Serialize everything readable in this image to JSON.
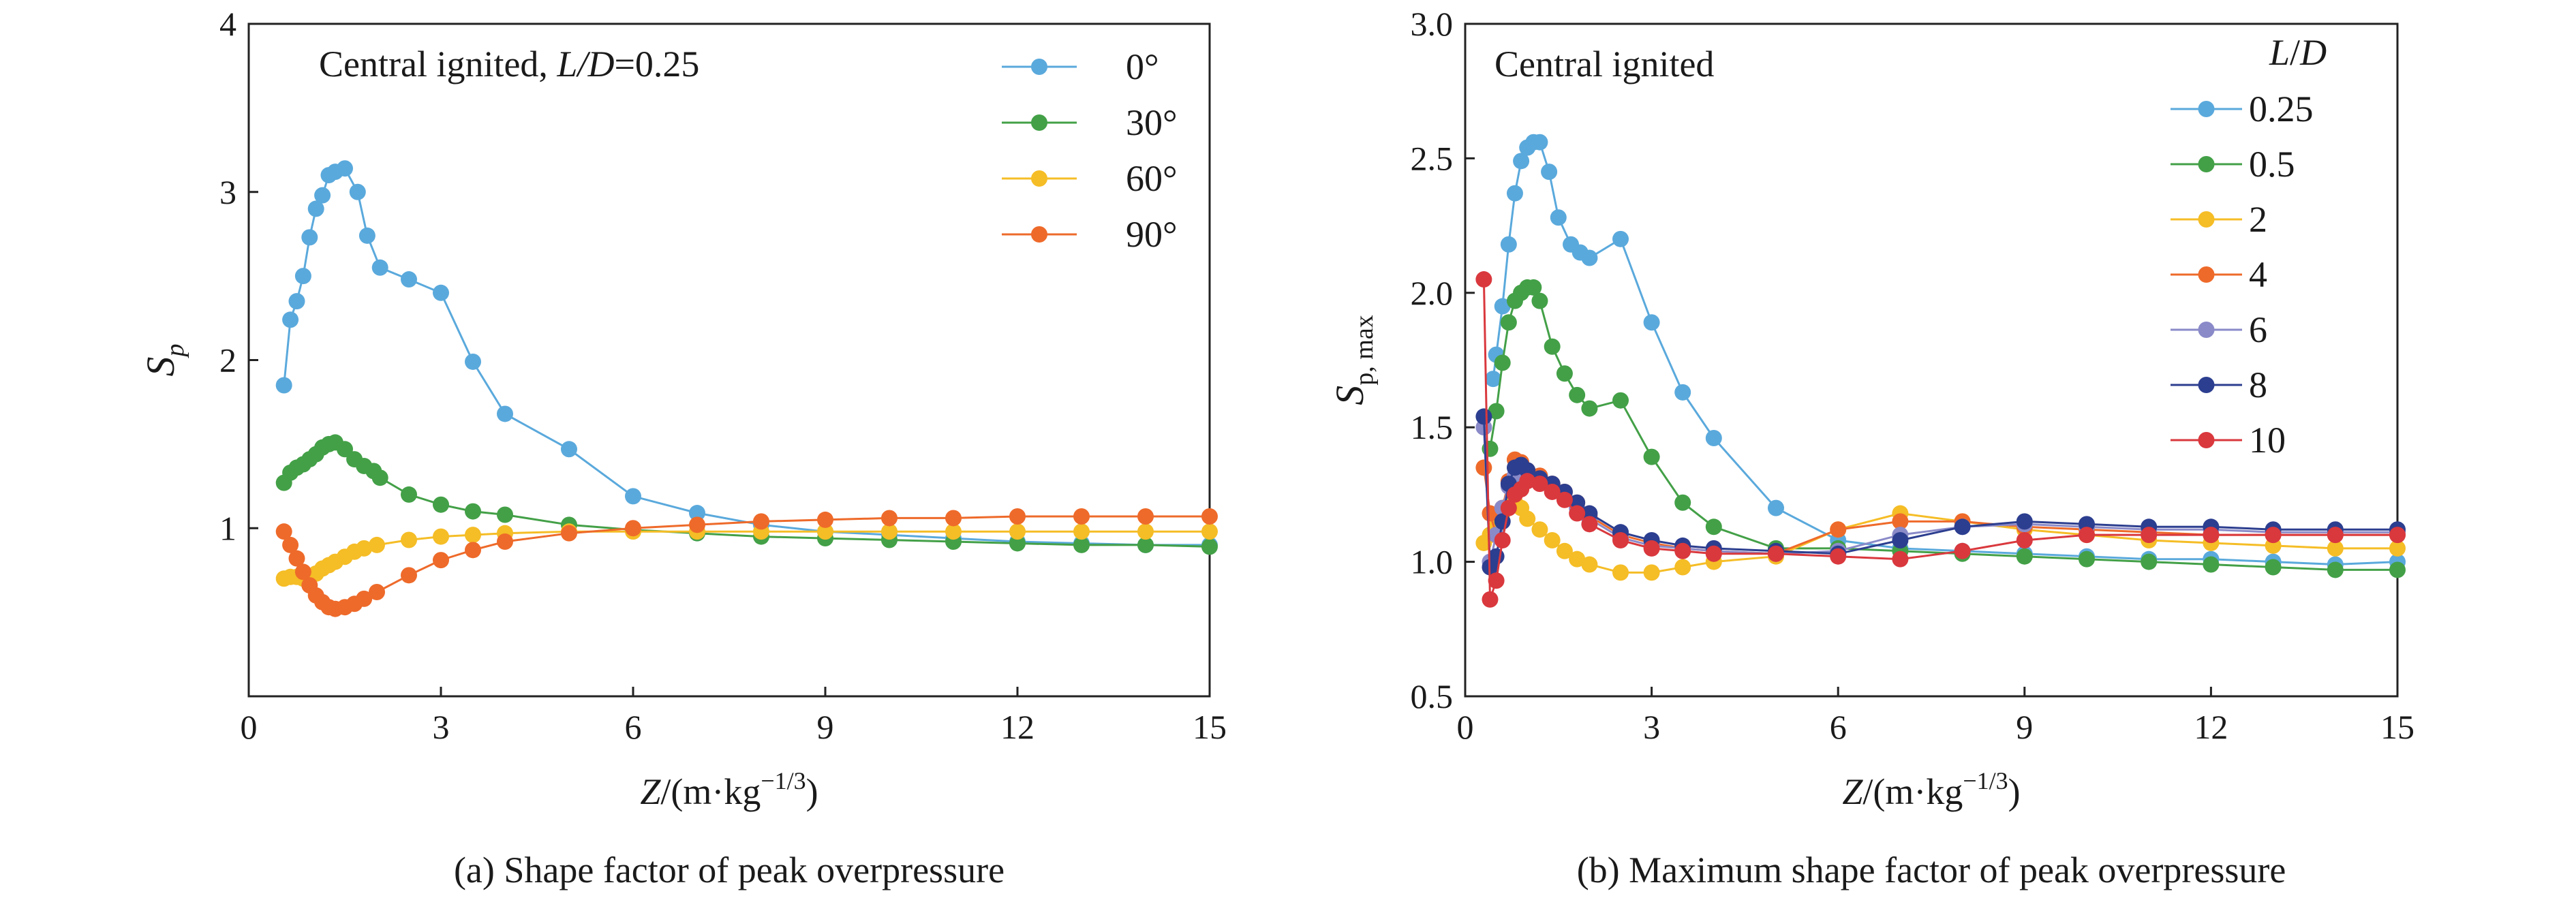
{
  "chart_data": [
    {
      "type": "line",
      "annotation": {
        "prefix": "Central ignited, ",
        "italic": "L/D",
        "suffix": "=0.25"
      },
      "ylabel": {
        "main": "S",
        "sub": "p"
      },
      "xlabel": {
        "italic": "Z",
        "pre": "/(m·kg",
        "sup": "−1/3",
        "post": ")"
      },
      "caption": "(a) Shape factor of peak overpressure",
      "xlim": [
        0,
        15
      ],
      "ylim": [
        0,
        4
      ],
      "xticks": [
        0,
        3,
        6,
        9,
        12,
        15
      ],
      "xtick_labels": [
        "0",
        "3",
        "6",
        "9",
        "12",
        "15"
      ],
      "yticks": [
        1,
        2,
        3,
        4
      ],
      "ytick_labels": [
        "1",
        "2",
        "3",
        "4"
      ],
      "legend_title": "",
      "legend_position": "top-right",
      "series": [
        {
          "name": "0°",
          "color": "#5aa9dc",
          "x": [
            0.55,
            0.65,
            0.75,
            0.85,
            0.95,
            1.05,
            1.15,
            1.25,
            1.35,
            1.5,
            1.7,
            1.85,
            2.05,
            2.5,
            3.0,
            3.5,
            4.0,
            5.0,
            6.0,
            7.0,
            8.0,
            9.0,
            10.0,
            11.0,
            12.0,
            13.0,
            14.0,
            15.0
          ],
          "y": [
            1.85,
            2.24,
            2.35,
            2.5,
            2.73,
            2.9,
            2.98,
            3.1,
            3.12,
            3.14,
            3.0,
            2.74,
            2.55,
            2.48,
            2.4,
            1.99,
            1.68,
            1.47,
            1.19,
            1.09,
            1.02,
            0.98,
            0.96,
            0.94,
            0.92,
            0.91,
            0.9,
            0.9
          ],
          "x_fix": [
            0.55,
            0.65,
            0.75,
            0.85,
            0.95,
            1.05,
            1.15,
            1.25,
            1.35,
            1.5,
            1.7,
            1.85,
            2.05,
            2.5,
            3.0,
            3.5,
            4.0,
            5.0,
            6.0,
            7.0,
            8.0,
            9.0,
            10.0,
            11.0,
            12.0,
            13.0,
            14.0,
            15.0
          ]
        },
        {
          "name": "30°",
          "color": "#43a047",
          "x": [
            0.55,
            0.65,
            0.75,
            0.85,
            0.95,
            1.05,
            1.15,
            1.25,
            1.35,
            1.5,
            1.65,
            1.8,
            1.95,
            2.05,
            2.5,
            3.0,
            3.5,
            4.0,
            5.0,
            6.0,
            7.0,
            8.0,
            9.0,
            10.0,
            11.0,
            12.0,
            13.0,
            14.0,
            15.0
          ],
          "y": [
            1.27,
            1.33,
            1.36,
            1.38,
            1.41,
            1.44,
            1.48,
            1.5,
            1.51,
            1.47,
            1.41,
            1.37,
            1.34,
            1.3,
            1.2,
            1.14,
            1.1,
            1.08,
            1.02,
            0.99,
            0.97,
            0.95,
            0.94,
            0.93,
            0.92,
            0.91,
            0.9,
            0.9,
            0.89
          ]
        },
        {
          "name": "60°",
          "color": "#f5bd26",
          "x": [
            0.55,
            0.65,
            0.75,
            0.85,
            0.95,
            1.05,
            1.15,
            1.25,
            1.35,
            1.5,
            1.65,
            1.8,
            2.0,
            2.5,
            3.0,
            3.5,
            4.0,
            5.0,
            6.0,
            7.0,
            8.0,
            9.0,
            10.0,
            11.0,
            12.0,
            13.0,
            14.0,
            15.0
          ],
          "y": [
            0.7,
            0.71,
            0.71,
            0.7,
            0.71,
            0.73,
            0.76,
            0.78,
            0.8,
            0.83,
            0.86,
            0.88,
            0.9,
            0.93,
            0.95,
            0.96,
            0.97,
            0.98,
            0.98,
            0.98,
            0.98,
            0.98,
            0.98,
            0.98,
            0.98,
            0.98,
            0.98,
            0.98
          ]
        },
        {
          "name": "90°",
          "color": "#ee6a2a",
          "x": [
            0.55,
            0.65,
            0.75,
            0.85,
            0.95,
            1.05,
            1.15,
            1.25,
            1.35,
            1.5,
            1.65,
            1.8,
            2.0,
            2.5,
            3.0,
            3.5,
            4.0,
            5.0,
            6.0,
            7.0,
            8.0,
            9.0,
            10.0,
            11.0,
            12.0,
            13.0,
            14.0,
            15.0
          ],
          "y": [
            0.98,
            0.9,
            0.82,
            0.74,
            0.66,
            0.6,
            0.56,
            0.53,
            0.52,
            0.53,
            0.55,
            0.58,
            0.62,
            0.72,
            0.81,
            0.87,
            0.92,
            0.97,
            1.0,
            1.02,
            1.04,
            1.05,
            1.06,
            1.06,
            1.07,
            1.07,
            1.07,
            1.07
          ]
        }
      ]
    },
    {
      "type": "line",
      "annotation": {
        "prefix": "Central ignited",
        "italic": "",
        "suffix": ""
      },
      "ylabel": {
        "main": "S",
        "sub": "p, max"
      },
      "xlabel": {
        "italic": "Z",
        "pre": "/(m·kg",
        "sup": "−1/3",
        "post": ")"
      },
      "caption": "(b) Maximum shape factor of peak overpressure",
      "xlim": [
        0,
        15
      ],
      "ylim": [
        0.5,
        3.0
      ],
      "xticks": [
        0,
        3,
        6,
        9,
        12,
        15
      ],
      "xtick_labels": [
        "0",
        "3",
        "6",
        "9",
        "12",
        "15"
      ],
      "yticks": [
        0.5,
        1.0,
        1.5,
        2.0,
        2.5,
        3.0
      ],
      "ytick_labels": [
        "0.5",
        "1.0",
        "1.5",
        "2.0",
        "2.5",
        "3.0"
      ],
      "legend_title": "L/D",
      "legend_position": "top-right",
      "series": [
        {
          "name": "0.25",
          "color": "#5aa9dc",
          "x": [
            0.45,
            0.5,
            0.6,
            0.7,
            0.8,
            0.9,
            1.0,
            1.1,
            1.2,
            1.35,
            1.5,
            1.7,
            1.85,
            2.0,
            2.5,
            3.0,
            3.5,
            4.0,
            5.0,
            6.0,
            7.0,
            8.0,
            9.0,
            10.0,
            11.0,
            12.0,
            13.0,
            14.0,
            15.0
          ],
          "y": [
            1.68,
            1.77,
            1.95,
            2.18,
            2.37,
            2.49,
            2.54,
            2.56,
            2.56,
            2.45,
            2.28,
            2.18,
            2.15,
            2.13,
            2.2,
            1.89,
            1.63,
            1.46,
            1.2,
            1.08,
            1.05,
            1.04,
            1.03,
            1.02,
            1.01,
            1.01,
            1.0,
            0.99,
            1.0
          ]
        },
        {
          "name": "0.5",
          "color": "#43a047",
          "x": [
            0.4,
            0.5,
            0.6,
            0.7,
            0.8,
            0.9,
            1.0,
            1.1,
            1.2,
            1.4,
            1.6,
            1.8,
            2.0,
            2.5,
            3.0,
            3.5,
            4.0,
            5.0,
            6.0,
            7.0,
            8.0,
            9.0,
            10.0,
            11.0,
            12.0,
            13.0,
            14.0,
            15.0
          ],
          "y": [
            1.42,
            1.56,
            1.74,
            1.89,
            1.97,
            2.0,
            2.02,
            2.02,
            1.97,
            1.8,
            1.7,
            1.62,
            1.57,
            1.6,
            1.39,
            1.22,
            1.13,
            1.05,
            1.05,
            1.04,
            1.03,
            1.02,
            1.01,
            1.0,
            0.99,
            0.98,
            0.97,
            0.97
          ]
        },
        {
          "name": "2",
          "color": "#f5bd26",
          "x": [
            0.3,
            0.4,
            0.5,
            0.6,
            0.7,
            0.8,
            0.9,
            1.0,
            1.2,
            1.4,
            1.6,
            1.8,
            2.0,
            2.5,
            3.0,
            3.5,
            4.0,
            5.0,
            6.0,
            7.0,
            8.0,
            9.0,
            10.0,
            11.0,
            12.0,
            13.0,
            14.0,
            15.0
          ],
          "y": [
            1.07,
            1.1,
            1.13,
            1.18,
            1.21,
            1.22,
            1.2,
            1.16,
            1.12,
            1.08,
            1.04,
            1.01,
            0.99,
            0.96,
            0.96,
            0.98,
            1.0,
            1.02,
            1.12,
            1.18,
            1.15,
            1.12,
            1.1,
            1.08,
            1.07,
            1.06,
            1.05,
            1.05
          ]
        },
        {
          "name": "4",
          "color": "#ee6a2a",
          "x": [
            0.3,
            0.4,
            0.5,
            0.6,
            0.7,
            0.8,
            0.9,
            1.0,
            1.2,
            1.4,
            1.6,
            1.8,
            2.0,
            2.5,
            3.0,
            3.5,
            4.0,
            5.0,
            6.0,
            7.0,
            8.0,
            9.0,
            10.0,
            11.0,
            12.0,
            13.0,
            14.0,
            15.0
          ],
          "y": [
            1.35,
            1.18,
            1.1,
            1.2,
            1.3,
            1.38,
            1.37,
            1.34,
            1.32,
            1.29,
            1.26,
            1.22,
            1.17,
            1.1,
            1.07,
            1.05,
            1.04,
            1.03,
            1.12,
            1.15,
            1.15,
            1.13,
            1.12,
            1.11,
            1.1,
            1.1,
            1.1,
            1.1
          ]
        },
        {
          "name": "6",
          "color": "#8a8ac9",
          "x": [
            0.3,
            0.4,
            0.5,
            0.6,
            0.7,
            0.8,
            0.9,
            1.0,
            1.2,
            1.4,
            1.6,
            1.8,
            2.0,
            2.5,
            3.0,
            3.5,
            4.0,
            5.0,
            6.0,
            7.0,
            8.0,
            9.0,
            10.0,
            11.0,
            12.0,
            13.0,
            14.0,
            15.0
          ],
          "y": [
            1.5,
            1.0,
            1.1,
            1.2,
            1.28,
            1.32,
            1.33,
            1.32,
            1.3,
            1.27,
            1.24,
            1.2,
            1.16,
            1.09,
            1.06,
            1.05,
            1.04,
            1.03,
            1.04,
            1.1,
            1.13,
            1.14,
            1.13,
            1.12,
            1.12,
            1.11,
            1.11,
            1.11
          ]
        },
        {
          "name": "8",
          "color": "#2c3e8f",
          "x": [
            0.3,
            0.4,
            0.5,
            0.6,
            0.7,
            0.8,
            0.9,
            1.0,
            1.2,
            1.4,
            1.6,
            1.8,
            2.0,
            2.5,
            3.0,
            3.5,
            4.0,
            5.0,
            6.0,
            7.0,
            8.0,
            9.0,
            10.0,
            11.0,
            12.0,
            13.0,
            14.0,
            15.0
          ],
          "y": [
            1.54,
            0.98,
            1.02,
            1.15,
            1.29,
            1.35,
            1.36,
            1.34,
            1.31,
            1.29,
            1.26,
            1.22,
            1.18,
            1.11,
            1.08,
            1.06,
            1.05,
            1.04,
            1.03,
            1.08,
            1.13,
            1.15,
            1.14,
            1.13,
            1.13,
            1.12,
            1.12,
            1.12
          ]
        },
        {
          "name": "10",
          "color": "#d9383d",
          "x": [
            0.3,
            0.4,
            0.5,
            0.6,
            0.7,
            0.8,
            0.9,
            1.0,
            1.2,
            1.4,
            1.6,
            1.8,
            2.0,
            2.5,
            3.0,
            3.5,
            4.0,
            5.0,
            6.0,
            7.0,
            8.0,
            9.0,
            10.0,
            11.0,
            12.0,
            13.0,
            14.0,
            15.0
          ],
          "y": [
            2.05,
            0.86,
            0.93,
            1.08,
            1.2,
            1.25,
            1.27,
            1.3,
            1.29,
            1.26,
            1.23,
            1.18,
            1.14,
            1.08,
            1.05,
            1.04,
            1.03,
            1.03,
            1.02,
            1.01,
            1.04,
            1.08,
            1.1,
            1.1,
            1.1,
            1.1,
            1.1,
            1.1
          ]
        }
      ]
    }
  ]
}
